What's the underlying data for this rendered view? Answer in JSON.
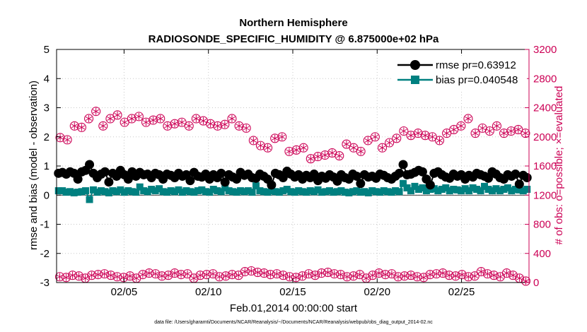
{
  "chart_data": {
    "type": "line",
    "title_line1": "Northern Hemisphere",
    "title_line2": "RADIOSONDE_SPECIFIC_HUMIDITY @ 6.875000e+02 hPa",
    "xlabel": "Feb.01,2014 00:00:00 start",
    "ylabel_left": "rmse and bias (model - observation)",
    "ylabel_right": "# of obs: o=possible; ×=evaluated",
    "footer": "data file: /Users/gharamti/Documents/NCAR/Reanalysis/~/Documents/NCAR/Reanalysis/webpub/obs_diag_output_2014-02.nc",
    "x_range_days": [
      1,
      29
    ],
    "x_ticks": [
      {
        "day": 5,
        "label": "02/05"
      },
      {
        "day": 10,
        "label": "02/10"
      },
      {
        "day": 15,
        "label": "02/15"
      },
      {
        "day": 20,
        "label": "02/20"
      },
      {
        "day": 25,
        "label": "02/25"
      }
    ],
    "ylim_left": [
      -3,
      5
    ],
    "yticks_left": [
      "-3",
      "-2",
      "-1",
      "0",
      "1",
      "2",
      "3",
      "4",
      "5"
    ],
    "ylim_right": [
      0,
      3200
    ],
    "yticks_right": [
      "0",
      "400",
      "800",
      "1200",
      "1600",
      "2000",
      "2400",
      "2800",
      "3200"
    ],
    "series": [
      {
        "name": "rmse pr=0.63912",
        "color": "#000000",
        "marker": "circle",
        "values": [
          0.75,
          0.78,
          0.72,
          0.8,
          0.75,
          0.55,
          0.8,
          0.85,
          1.05,
          0.75,
          0.6,
          0.72,
          0.8,
          0.45,
          0.75,
          0.65,
          0.85,
          0.7,
          0.55,
          0.8,
          0.65,
          0.78,
          0.7,
          0.72,
          0.6,
          0.75,
          0.7,
          0.55,
          0.72,
          0.68,
          0.6,
          0.75,
          0.65,
          0.7,
          0.5,
          0.78,
          0.65,
          0.62,
          0.72,
          0.55,
          0.7,
          0.6,
          0.75,
          0.45,
          0.7,
          0.62,
          0.55,
          0.78,
          0.68,
          0.72,
          0.6,
          0.58,
          0.72,
          0.65,
          0.55,
          0.35,
          0.75,
          0.7,
          0.6,
          0.82,
          0.72,
          0.62,
          0.7,
          0.55,
          0.68,
          0.6,
          0.72,
          0.5,
          0.65,
          0.58,
          0.7,
          0.62,
          0.48,
          0.7,
          0.6,
          0.55,
          0.72,
          0.65,
          0.4,
          0.7,
          0.62,
          0.65,
          0.58,
          0.72,
          0.68,
          0.6,
          0.55,
          0.65,
          0.75,
          1.05,
          0.7,
          0.72,
          0.78,
          0.85,
          0.8,
          0.55,
          0.35,
          0.75,
          0.8,
          0.7,
          0.62,
          0.58,
          0.72,
          0.65,
          0.7,
          0.55,
          0.68,
          0.62,
          0.75,
          0.7,
          0.65,
          0.58,
          0.8,
          0.72,
          0.6,
          0.55,
          0.7,
          0.65,
          0.72,
          0.38,
          0.68,
          0.6
        ]
      },
      {
        "name": "bias pr=0.040548",
        "color": "#008080",
        "marker": "square",
        "values": [
          0.15,
          0.15,
          0.1,
          0.12,
          0.08,
          0.1,
          0.12,
          0.15,
          -0.15,
          0.18,
          0.1,
          0.15,
          0.12,
          0.08,
          0.15,
          0.12,
          0.18,
          0.1,
          0.15,
          0.12,
          0.1,
          0.28,
          0.15,
          0.12,
          0.2,
          0.15,
          0.22,
          0.12,
          0.1,
          0.15,
          0.12,
          0.18,
          0.1,
          0.15,
          0.12,
          0.1,
          0.15,
          0.18,
          0.12,
          0.1,
          0.2,
          0.15,
          0.12,
          0.25,
          0.15,
          0.12,
          0.1,
          0.15,
          0.12,
          0.15,
          0.1,
          0.32,
          0.15,
          0.12,
          0.1,
          0.15,
          0.12,
          0.1,
          0.15,
          0.2,
          0.12,
          0.1,
          0.15,
          0.12,
          0.1,
          0.15,
          0.12,
          0.18,
          0.1,
          0.12,
          0.15,
          0.1,
          0.12,
          0.15,
          0.1,
          0.08,
          0.12,
          0.15,
          0.1,
          0.12,
          0.08,
          0.15,
          0.12,
          0.1,
          0.15,
          0.12,
          0.1,
          0.15,
          0.12,
          0.4,
          0.25,
          0.15,
          0.3,
          0.2,
          0.25,
          0.15,
          0.2,
          0.22,
          0.15,
          0.2,
          0.25,
          0.15,
          0.2,
          0.18,
          0.15,
          0.22,
          0.15,
          0.25,
          0.2,
          0.15,
          0.3,
          0.2,
          0.15,
          0.22,
          0.15,
          0.2,
          0.25,
          0.15,
          0.2,
          0.18,
          0.15,
          0.2
        ]
      },
      {
        "name": "possible",
        "color": "#cc0055",
        "marker": "circle-open",
        "axis": "right",
        "values": [
          1990,
          1960,
          2150,
          2130,
          2250,
          2350,
          2150,
          2250,
          2300,
          2200,
          2250,
          2280,
          2200,
          2230,
          2250,
          2150,
          2180,
          2200,
          2150,
          2250,
          2220,
          2180,
          2150,
          2170,
          2250,
          2150,
          2120,
          1950,
          1880,
          1850,
          1980,
          2000,
          1800,
          1820,
          1850,
          1700,
          1730,
          1750,
          1780,
          1740,
          1900,
          1850,
          1800,
          1950,
          2000,
          1850,
          1920,
          1980,
          2080,
          2020,
          2050,
          2020,
          2000,
          1950,
          2050,
          2100,
          2150,
          2250,
          2050,
          2120,
          2080,
          2150,
          2050,
          2080,
          2100,
          2050
        ]
      },
      {
        "name": "evaluated",
        "color": "#cc0055",
        "marker": "asterisk",
        "axis": "right",
        "values": [
          80,
          70,
          100,
          90,
          60,
          100,
          110,
          120,
          100,
          80,
          70,
          90,
          60,
          110,
          130,
          120,
          90,
          100,
          130,
          110,
          120,
          60,
          100,
          110,
          120,
          80,
          90,
          110,
          100,
          150,
          160,
          140,
          130,
          110,
          120,
          100,
          80,
          70,
          90,
          120,
          100,
          130,
          140,
          120,
          110,
          80,
          90,
          110,
          60,
          100,
          130,
          110,
          120,
          80,
          90,
          100,
          80,
          70,
          110,
          120,
          130,
          100,
          90,
          110,
          80,
          90,
          150,
          120,
          100,
          80,
          130,
          100,
          60,
          20
        ]
      }
    ]
  }
}
